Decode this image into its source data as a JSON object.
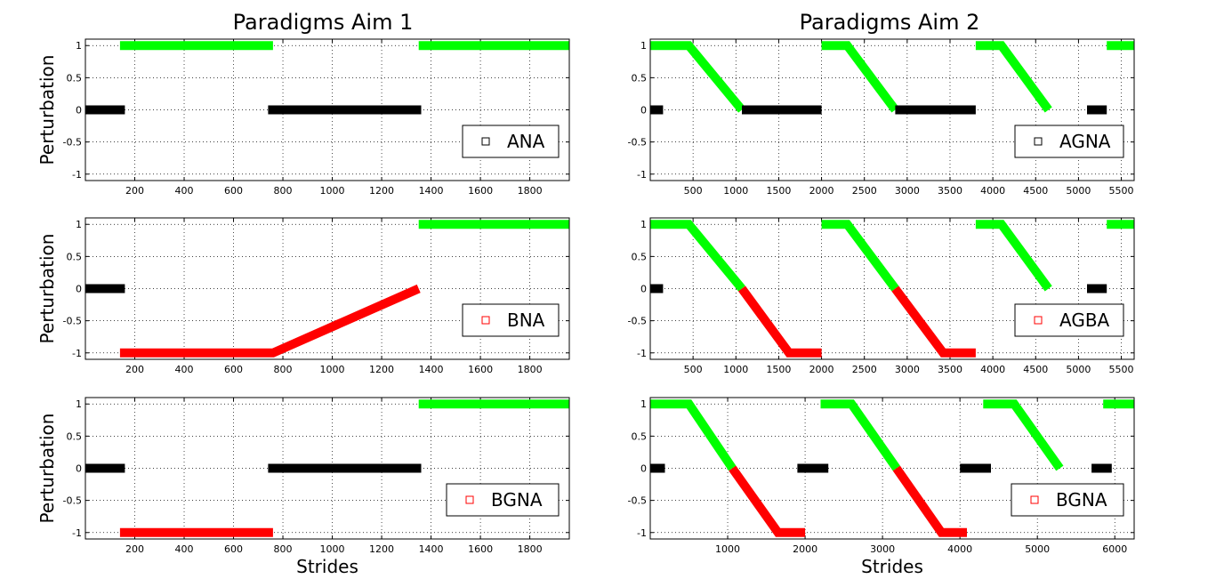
{
  "figure": {
    "left_title": "Paradigms Aim 1",
    "right_title": "Paradigms Aim 2"
  },
  "colors": {
    "green": "#00ff00",
    "red": "#ff0000",
    "black": "#000000"
  },
  "chart_data": [
    {
      "type": "line",
      "title": "Paradigms Aim 1",
      "xlabel": "",
      "ylabel": "Perturbation",
      "xlim": [
        0,
        1960
      ],
      "ylim": [
        -1.1,
        1.1
      ],
      "xticks": [
        200,
        400,
        600,
        800,
        1000,
        1200,
        1400,
        1600,
        1800
      ],
      "yticks": [
        1,
        0.5,
        0,
        -0.5,
        -1
      ],
      "ytick_labels": [
        "1",
        "0.5",
        "0",
        "-0.5",
        "-1"
      ],
      "grid": true,
      "legend": {
        "position": "bottom-right",
        "label": "ANA",
        "marker_color": "#000000"
      },
      "series": [
        {
          "color": "#000000",
          "x": [
            0,
            160
          ],
          "y": [
            0,
            0
          ]
        },
        {
          "color": "#00ff00",
          "x": [
            140,
            760
          ],
          "y": [
            1,
            1
          ]
        },
        {
          "color": "#000000",
          "x": [
            740,
            1360
          ],
          "y": [
            0,
            0
          ]
        },
        {
          "color": "#00ff00",
          "x": [
            1350,
            1960
          ],
          "y": [
            1,
            1
          ]
        }
      ]
    },
    {
      "type": "line",
      "title": "Paradigms Aim 2",
      "xlabel": "",
      "ylabel": "",
      "xlim": [
        0,
        5650
      ],
      "ylim": [
        -1.1,
        1.1
      ],
      "xticks": [
        500,
        1000,
        1500,
        2000,
        2500,
        3000,
        3500,
        4000,
        4500,
        5000,
        5500
      ],
      "yticks": [
        1,
        0.5,
        0,
        -0.5,
        -1
      ],
      "ytick_labels": [
        "1",
        "0.5",
        "0",
        "-0.5",
        "-1"
      ],
      "grid": true,
      "legend": {
        "position": "bottom-right",
        "label": "AGNA",
        "marker_color": "#000000"
      },
      "series": [
        {
          "color": "#000000",
          "x": [
            0,
            150
          ],
          "y": [
            0,
            0
          ]
        },
        {
          "color": "#00ff00",
          "x": [
            0,
            450,
            1070
          ],
          "y": [
            1,
            1,
            0
          ]
        },
        {
          "color": "#000000",
          "x": [
            1070,
            2000
          ],
          "y": [
            0,
            0
          ]
        },
        {
          "color": "#00ff00",
          "x": [
            2000,
            2300,
            2860
          ],
          "y": [
            1,
            1,
            0
          ]
        },
        {
          "color": "#000000",
          "x": [
            2860,
            3800
          ],
          "y": [
            0,
            0
          ]
        },
        {
          "color": "#00ff00",
          "x": [
            3800,
            4100,
            4650
          ],
          "y": [
            1,
            1,
            0
          ]
        },
        {
          "color": "#000000",
          "x": [
            5100,
            5330
          ],
          "y": [
            0,
            0
          ]
        },
        {
          "color": "#00ff00",
          "x": [
            5330,
            5650
          ],
          "y": [
            1,
            1
          ]
        }
      ]
    },
    {
      "type": "line",
      "title": "",
      "xlabel": "",
      "ylabel": "Perturbation",
      "xlim": [
        0,
        1960
      ],
      "ylim": [
        -1.1,
        1.1
      ],
      "xticks": [
        200,
        400,
        600,
        800,
        1000,
        1200,
        1400,
        1600,
        1800
      ],
      "yticks": [
        1,
        0.5,
        0,
        -0.5,
        -1
      ],
      "ytick_labels": [
        "1",
        "0.5",
        "0",
        "-0.5",
        "-1"
      ],
      "grid": true,
      "legend": {
        "position": "bottom-right",
        "label": "BNA",
        "marker_color": "#ff0000"
      },
      "series": [
        {
          "color": "#000000",
          "x": [
            0,
            160
          ],
          "y": [
            0,
            0
          ]
        },
        {
          "color": "#ff0000",
          "x": [
            140,
            760,
            1350
          ],
          "y": [
            -1,
            -1,
            0
          ]
        },
        {
          "color": "#00ff00",
          "x": [
            1350,
            1960
          ],
          "y": [
            1,
            1
          ]
        }
      ]
    },
    {
      "type": "line",
      "title": "",
      "xlabel": "",
      "ylabel": "",
      "xlim": [
        0,
        5650
      ],
      "ylim": [
        -1.1,
        1.1
      ],
      "xticks": [
        500,
        1000,
        1500,
        2000,
        2500,
        3000,
        3500,
        4000,
        4500,
        5000,
        5500
      ],
      "yticks": [
        1,
        0.5,
        0,
        -0.5,
        -1
      ],
      "ytick_labels": [
        "1",
        "0.5",
        "0",
        "-0.5",
        "-1"
      ],
      "grid": true,
      "legend": {
        "position": "bottom-right",
        "label": "AGBA",
        "marker_color": "#ff0000"
      },
      "series": [
        {
          "color": "#000000",
          "x": [
            0,
            150
          ],
          "y": [
            0,
            0
          ]
        },
        {
          "color": "#00ff00",
          "x": [
            0,
            450,
            1070
          ],
          "y": [
            1,
            1,
            0
          ]
        },
        {
          "color": "#ff0000",
          "x": [
            1070,
            1620,
            2000
          ],
          "y": [
            0,
            -1,
            -1
          ]
        },
        {
          "color": "#00ff00",
          "x": [
            2000,
            2300,
            2860
          ],
          "y": [
            1,
            1,
            0
          ]
        },
        {
          "color": "#ff0000",
          "x": [
            2860,
            3420,
            3800
          ],
          "y": [
            0,
            -1,
            -1
          ]
        },
        {
          "color": "#00ff00",
          "x": [
            3800,
            4100,
            4650
          ],
          "y": [
            1,
            1,
            0
          ]
        },
        {
          "color": "#000000",
          "x": [
            5100,
            5330
          ],
          "y": [
            0,
            0
          ]
        },
        {
          "color": "#00ff00",
          "x": [
            5330,
            5650
          ],
          "y": [
            1,
            1
          ]
        }
      ]
    },
    {
      "type": "line",
      "title": "",
      "xlabel": "Strides",
      "ylabel": "Perturbation",
      "xlim": [
        0,
        1960
      ],
      "ylim": [
        -1.1,
        1.1
      ],
      "xticks": [
        200,
        400,
        600,
        800,
        1000,
        1200,
        1400,
        1600,
        1800
      ],
      "yticks": [
        1,
        0.5,
        0,
        -0.5,
        -1
      ],
      "ytick_labels": [
        "1",
        "0.5",
        "0",
        "-0.5",
        "-1"
      ],
      "grid": true,
      "legend": {
        "position": "bottom-right",
        "label": "BGNA",
        "marker_color": "#ff0000"
      },
      "series": [
        {
          "color": "#000000",
          "x": [
            0,
            160
          ],
          "y": [
            0,
            0
          ]
        },
        {
          "color": "#ff0000",
          "x": [
            140,
            760
          ],
          "y": [
            -1,
            -1
          ]
        },
        {
          "color": "#000000",
          "x": [
            740,
            1360
          ],
          "y": [
            0,
            0
          ]
        },
        {
          "color": "#00ff00",
          "x": [
            1350,
            1960
          ],
          "y": [
            1,
            1
          ]
        }
      ]
    },
    {
      "type": "line",
      "title": "",
      "xlabel": "Strides",
      "ylabel": "",
      "xlim": [
        0,
        6250
      ],
      "ylim": [
        -1.1,
        1.1
      ],
      "xticks": [
        1000,
        2000,
        3000,
        4000,
        5000,
        6000
      ],
      "yticks": [
        1,
        0.5,
        0,
        -0.5,
        -1
      ],
      "ytick_labels": [
        "1",
        "0.5",
        "0",
        "-0.5",
        "-1"
      ],
      "grid": true,
      "legend": {
        "position": "bottom-right",
        "label": "BGNA",
        "marker_color": "#ff0000"
      },
      "series": [
        {
          "color": "#000000",
          "x": [
            0,
            190
          ],
          "y": [
            0,
            0
          ]
        },
        {
          "color": "#00ff00",
          "x": [
            0,
            500,
            1060
          ],
          "y": [
            1,
            1,
            0
          ]
        },
        {
          "color": "#ff0000",
          "x": [
            1060,
            1650,
            2000
          ],
          "y": [
            0,
            -1,
            -1
          ]
        },
        {
          "color": "#000000",
          "x": [
            1900,
            2300
          ],
          "y": [
            0,
            0
          ]
        },
        {
          "color": "#00ff00",
          "x": [
            2200,
            2600,
            3180
          ],
          "y": [
            1,
            1,
            0
          ]
        },
        {
          "color": "#ff0000",
          "x": [
            3180,
            3760,
            4090
          ],
          "y": [
            0,
            -1,
            -1
          ]
        },
        {
          "color": "#000000",
          "x": [
            4000,
            4400
          ],
          "y": [
            0,
            0
          ]
        },
        {
          "color": "#00ff00",
          "x": [
            4300,
            4700,
            5290
          ],
          "y": [
            1,
            1,
            0
          ]
        },
        {
          "color": "#000000",
          "x": [
            5700,
            5960
          ],
          "y": [
            0,
            0
          ]
        },
        {
          "color": "#00ff00",
          "x": [
            5850,
            6250
          ],
          "y": [
            1,
            1
          ]
        }
      ]
    }
  ]
}
